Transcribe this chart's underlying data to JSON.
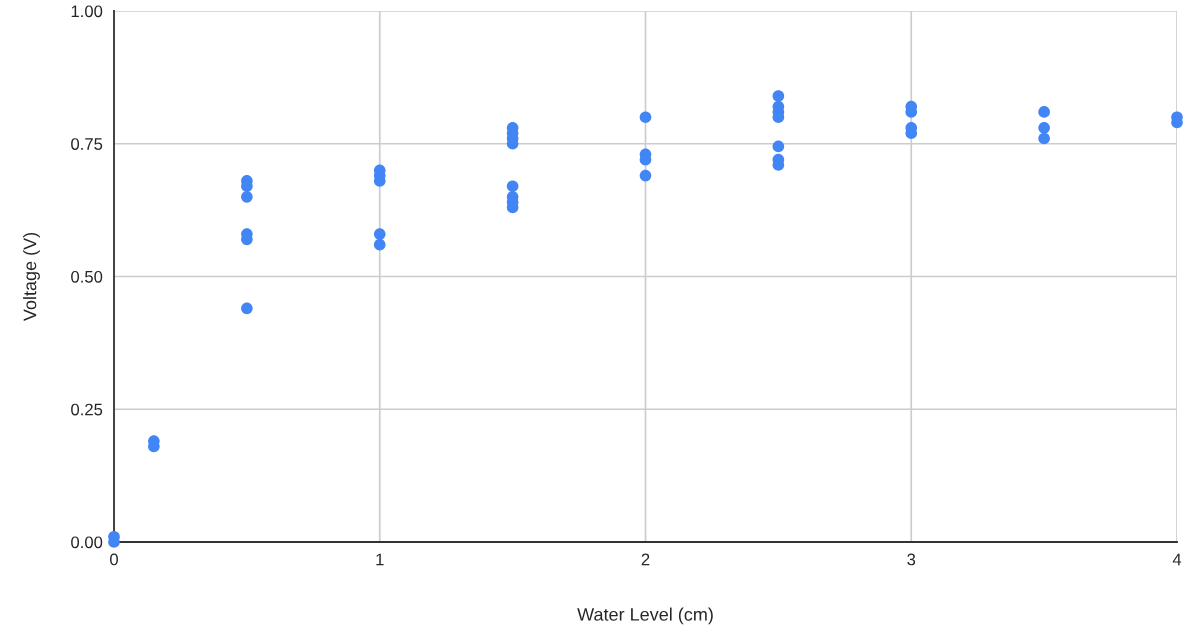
{
  "chart_data": {
    "type": "scatter",
    "xlabel": "Water Level (cm)",
    "ylabel": "Voltage (V)",
    "x": [
      0,
      0,
      0.15,
      0.15,
      0.5,
      0.5,
      0.5,
      0.5,
      0.5,
      0.5,
      1,
      1,
      1,
      1,
      1,
      1.5,
      1.5,
      1.5,
      1.5,
      1.5,
      1.5,
      1.5,
      1.5,
      2,
      2,
      2,
      2,
      2.5,
      2.5,
      2.5,
      2.5,
      2.5,
      2.5,
      2.5,
      3,
      3,
      3,
      3,
      3.5,
      3.5,
      3.5,
      4,
      4
    ],
    "series": [
      {
        "color": "#4285f4",
        "values": [
          0.01,
          0.0,
          0.19,
          0.18,
          0.68,
          0.67,
          0.65,
          0.58,
          0.57,
          0.44,
          0.7,
          0.69,
          0.68,
          0.58,
          0.56,
          0.78,
          0.77,
          0.76,
          0.75,
          0.67,
          0.65,
          0.64,
          0.63,
          0.8,
          0.73,
          0.72,
          0.69,
          0.84,
          0.82,
          0.81,
          0.8,
          0.745,
          0.72,
          0.71,
          0.82,
          0.81,
          0.78,
          0.77,
          0.81,
          0.78,
          0.76,
          0.8,
          0.79
        ]
      }
    ],
    "xlim": [
      0,
      4
    ],
    "xticks": [
      0,
      1,
      2,
      3,
      4
    ],
    "ylim": [
      0,
      1
    ],
    "yticks": [
      {
        "value": 0,
        "label": "0.00"
      },
      {
        "value": 0.25,
        "label": "0.25"
      },
      {
        "value": 0.5,
        "label": "0.50"
      },
      {
        "value": 0.75,
        "label": "0.75"
      },
      {
        "value": 1,
        "label": "1.00"
      }
    ],
    "grid": true,
    "marker": "circle",
    "legend": false
  }
}
